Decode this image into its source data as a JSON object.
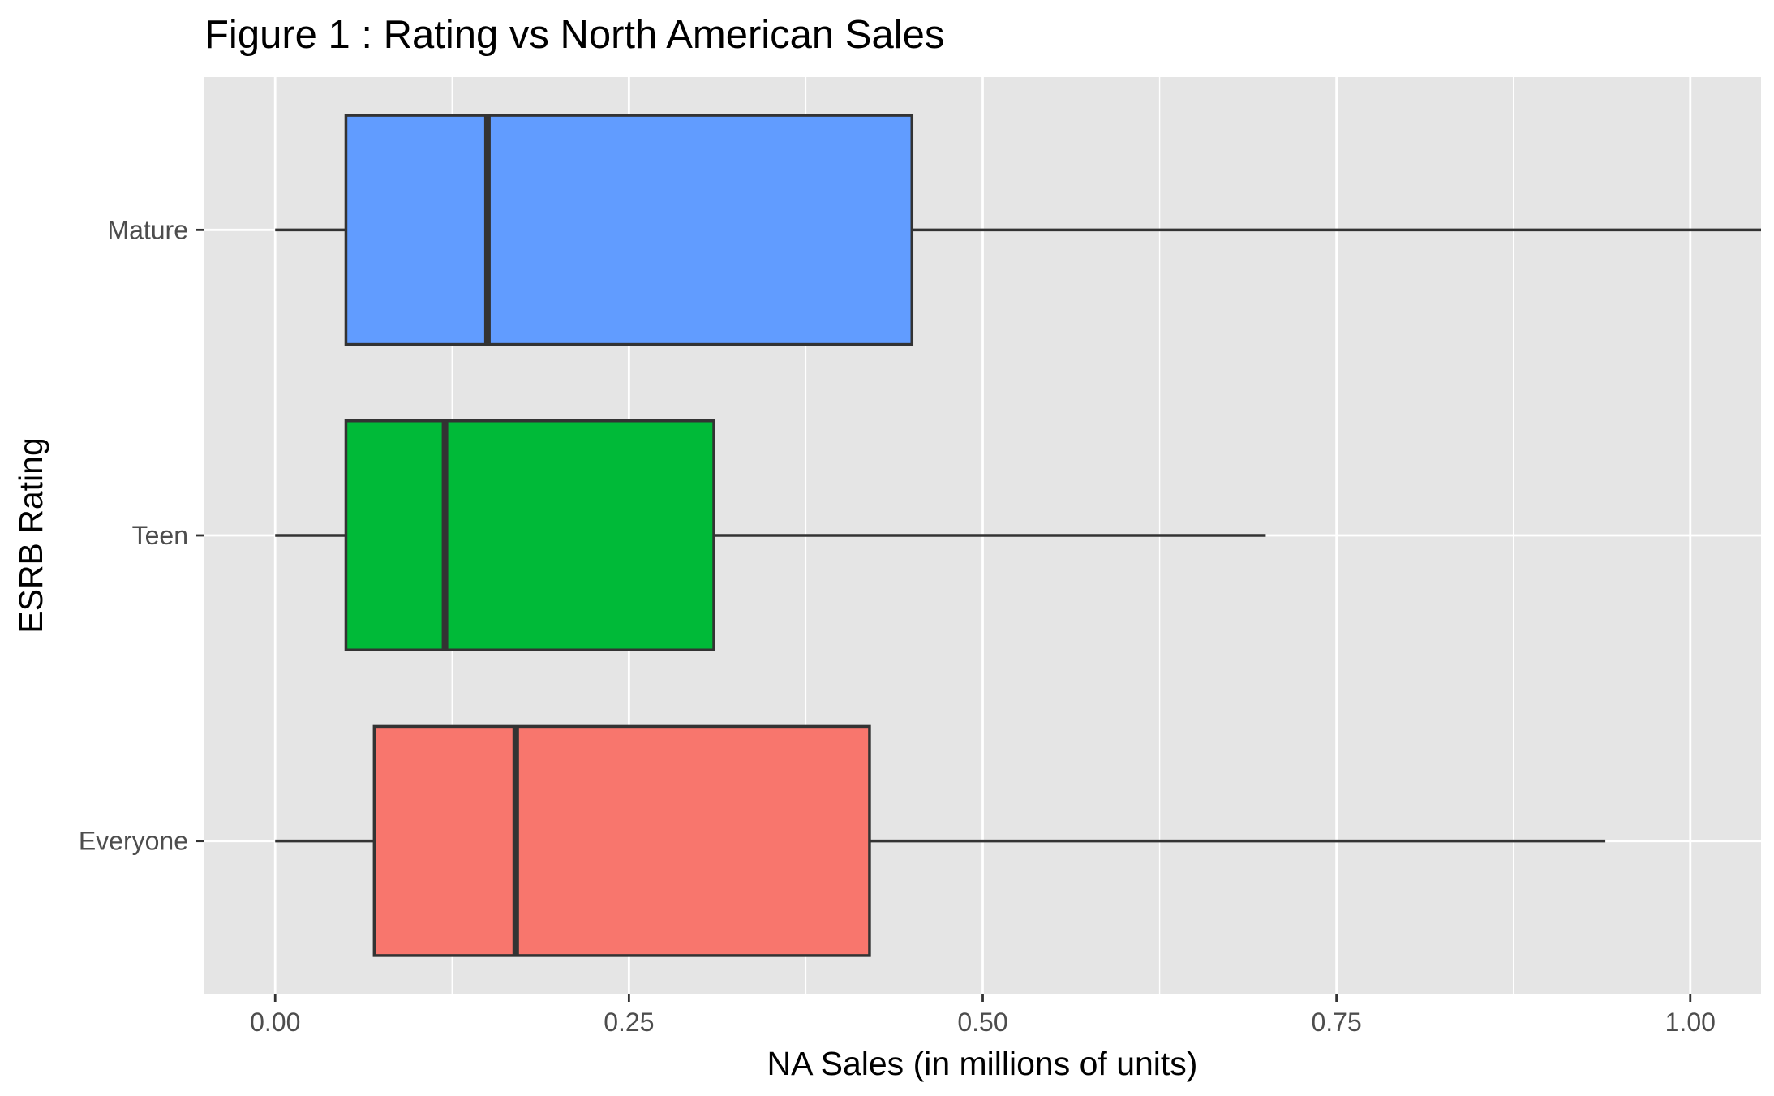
{
  "chart_data": {
    "type": "boxplot",
    "orientation": "horizontal",
    "title": "Figure 1 : Rating vs North American Sales",
    "xlabel": "NA Sales (in millions of units)",
    "ylabel": "ESRB Rating",
    "xlim": [
      -0.05,
      1.05
    ],
    "x_ticks": [
      "0.00",
      "0.25",
      "0.50",
      "0.75",
      "1.00"
    ],
    "x_tick_values": [
      0.0,
      0.25,
      0.5,
      0.75,
      1.0
    ],
    "categories": [
      "Everyone",
      "Teen",
      "Mature"
    ],
    "grid": true,
    "legend": "none",
    "series": [
      {
        "category": "Everyone",
        "whisker_low": 0.0,
        "q1": 0.07,
        "median": 0.17,
        "q3": 0.42,
        "whisker_high": 0.94,
        "color": "#F8766D"
      },
      {
        "category": "Teen",
        "whisker_low": 0.0,
        "q1": 0.05,
        "median": 0.12,
        "q3": 0.31,
        "whisker_high": 0.7,
        "color": "#00BA38"
      },
      {
        "category": "Mature",
        "whisker_low": 0.0,
        "q1": 0.05,
        "median": 0.15,
        "q3": 0.45,
        "whisker_high": 1.05,
        "color": "#619CFF"
      }
    ],
    "colors": {
      "panel": "#e5e5e5",
      "grid": "#ffffff",
      "box_stroke": "#333333"
    }
  }
}
